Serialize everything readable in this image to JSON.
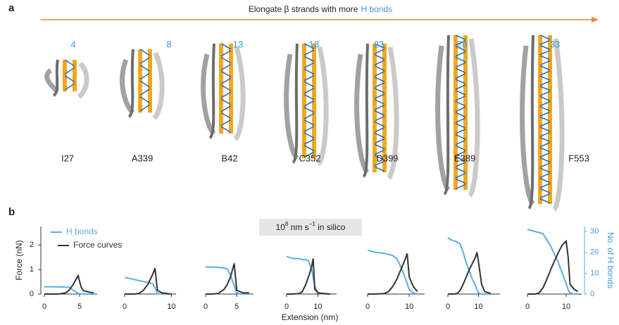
{
  "panel_a": {
    "label": "a",
    "header": [
      "Elongate β strands with more",
      "H bonds"
    ],
    "proteins": [
      {
        "name": "I27",
        "hbonds": 4
      },
      {
        "name": "A339",
        "hbonds": 8
      },
      {
        "name": "B42",
        "hbonds": 13
      },
      {
        "name": "C352",
        "hbonds": 18
      },
      {
        "name": "D399",
        "hbonds": 23
      },
      {
        "name": "E389",
        "hbonds": 28
      },
      {
        "name": "F553",
        "hbonds": 33
      }
    ]
  },
  "chart_data": {
    "type": "line",
    "label": "b",
    "annotation": [
      "10",
      "8",
      " nm s",
      "−1",
      " in silico"
    ],
    "xlabel": "Extension (nm)",
    "ylabel": "Force (nN)",
    "y2label": "No. of H bonds",
    "ylim": [
      0,
      2.75
    ],
    "yticks": [
      0,
      1,
      2
    ],
    "y2lim": [
      0,
      32.4
    ],
    "y2ticks": [
      0,
      10,
      20,
      30
    ],
    "legend": "upper left",
    "series": [
      {
        "name": "H bonds",
        "color": "#5aaee6",
        "axis": "y2"
      },
      {
        "name": "Force curves",
        "color": "#333333"
      }
    ],
    "panels": [
      {
        "xlim": [
          0,
          7.5
        ],
        "xticks": [
          0,
          5
        ],
        "x": [
          0,
          1,
          2,
          3,
          3.5,
          4,
          4.5,
          4.8,
          5.2,
          5.5,
          6,
          7
        ],
        "series": [
          {
            "values": [
              3.5,
              3.5,
              3.4,
              3.3,
              3.3,
              2,
              1,
              0.3,
              0,
              0,
              0,
              0
            ]
          },
          {
            "values": [
              0,
              0,
              0,
              0.05,
              0.15,
              0.35,
              0.6,
              0.75,
              0.3,
              0.15,
              0.1,
              0.05
            ]
          }
        ]
      },
      {
        "xlim": [
          0,
          11
        ],
        "xticks": [
          0,
          10
        ],
        "x": [
          0,
          1,
          2,
          3,
          4,
          5,
          6,
          6.5,
          7,
          8,
          9,
          10
        ],
        "series": [
          {
            "values": [
              8,
              7.5,
              7,
              6.5,
              6,
              5.5,
              5,
              3,
              0.3,
              0,
              0,
              0
            ]
          },
          {
            "values": [
              0,
              0,
              0,
              0.02,
              0.15,
              0.4,
              0.8,
              1.05,
              0.15,
              0.05,
              0.02,
              0
            ]
          }
        ]
      },
      {
        "xlim": [
          0,
          7.7
        ],
        "xticks": [
          0,
          5
        ],
        "x": [
          0,
          1,
          2,
          3,
          3.5,
          4,
          4.6,
          5,
          5.5,
          6,
          7
        ],
        "series": [
          {
            "values": [
              13,
              13,
              12.8,
              12.5,
              12,
              9,
              4,
              0.5,
              0,
              0,
              0
            ]
          },
          {
            "values": [
              0,
              0,
              0.02,
              0.2,
              0.4,
              0.7,
              1.25,
              0.15,
              0.1,
              0.05,
              0.05
            ]
          }
        ]
      },
      {
        "xlim": [
          0,
          16
        ],
        "xticks": [
          0,
          10
        ],
        "x": [
          0,
          2,
          4,
          5,
          6,
          7,
          8,
          8.5,
          9,
          10,
          12,
          14
        ],
        "series": [
          {
            "values": [
              18,
              17,
              17,
              16.5,
              16.5,
              16,
              12,
              8,
              4,
              0.5,
              0,
              0
            ]
          },
          {
            "values": [
              0,
              0,
              0.02,
              0.1,
              0.35,
              0.7,
              1.1,
              1.45,
              0.2,
              0.05,
              0.02,
              0
            ]
          }
        ]
      },
      {
        "xlim": [
          0,
          13.7
        ],
        "xticks": [
          0,
          10
        ],
        "x": [
          0,
          2,
          4,
          5,
          6,
          7,
          8,
          9,
          9.5,
          10,
          11,
          12
        ],
        "series": [
          {
            "values": [
              21,
              20,
              19.5,
              19,
              18.5,
              17,
              13,
              8,
              5,
              2,
              0.5,
              0
            ]
          },
          {
            "values": [
              0,
              0,
              0.02,
              0.1,
              0.3,
              0.6,
              1.0,
              1.4,
              1.65,
              0.7,
              0.3,
              0.1
            ]
          }
        ]
      },
      {
        "xlim": [
          0,
          17
        ],
        "xticks": [
          0,
          10
        ],
        "x": [
          0,
          1,
          2,
          3,
          4,
          5,
          6,
          7,
          8,
          9,
          9.5,
          10,
          11,
          12,
          14
        ],
        "series": [
          {
            "values": [
              27,
              26,
              25.5,
              25,
              24,
              20,
              15,
              11,
              7,
              4,
              2,
              0.5,
              0,
              0,
              0
            ]
          },
          {
            "values": [
              0,
              0,
              0,
              0.02,
              0.15,
              0.4,
              0.7,
              1.0,
              1.25,
              1.5,
              1.7,
              1.3,
              0.4,
              0.1,
              0.02
            ]
          }
        ]
      },
      {
        "xlim": [
          0,
          14
        ],
        "xticks": [
          0,
          10
        ],
        "x": [
          0,
          1,
          2,
          3,
          4,
          5,
          6,
          7,
          8,
          9,
          10,
          10.5,
          11,
          12,
          13
        ],
        "series": [
          {
            "values": [
              31,
              30.5,
              30,
              29.5,
              29,
              26,
              23,
              19,
              15,
              10,
              5,
              2,
              0.5,
              0,
              0
            ]
          },
          {
            "values": [
              0,
              0,
              0,
              0.05,
              0.25,
              0.6,
              1.0,
              1.35,
              1.7,
              2.0,
              2.15,
              1.5,
              0.4,
              0.2,
              0.1
            ]
          }
        ]
      }
    ]
  }
}
